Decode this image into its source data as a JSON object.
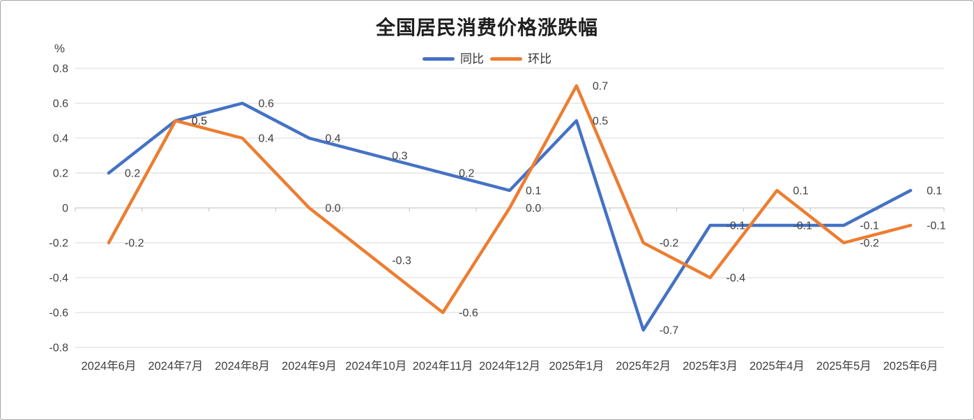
{
  "chart_data": {
    "type": "line",
    "title": "全国居民消费价格涨跌幅",
    "y_unit_label": "%",
    "categories": [
      "2024年6月",
      "2024年7月",
      "2024年8月",
      "2024年9月",
      "2024年10月",
      "2024年11月",
      "2024年12月",
      "2025年1月",
      "2025年2月",
      "2025年3月",
      "2025年4月",
      "2025年5月",
      "2025年6月"
    ],
    "series": [
      {
        "name": "同比",
        "color": "#4472C4",
        "values": [
          0.2,
          0.5,
          0.6,
          0.4,
          0.3,
          0.2,
          0.1,
          0.5,
          -0.7,
          -0.1,
          -0.1,
          -0.1,
          0.1
        ]
      },
      {
        "name": "环比",
        "color": "#ED7D31",
        "values": [
          -0.2,
          0.5,
          0.4,
          0.0,
          -0.3,
          -0.6,
          0.0,
          0.7,
          -0.2,
          -0.4,
          0.1,
          -0.2,
          -0.1
        ]
      }
    ],
    "ylim": [
      -0.8,
      0.8
    ],
    "ytick_step": 0.2,
    "grid": true,
    "legend_position": "top",
    "data_labels": true,
    "colors": {
      "gridline": "#D9D9D9",
      "axis_line": "#BFBFBF",
      "tick_label": "#404040",
      "data_label": "#404040"
    }
  }
}
